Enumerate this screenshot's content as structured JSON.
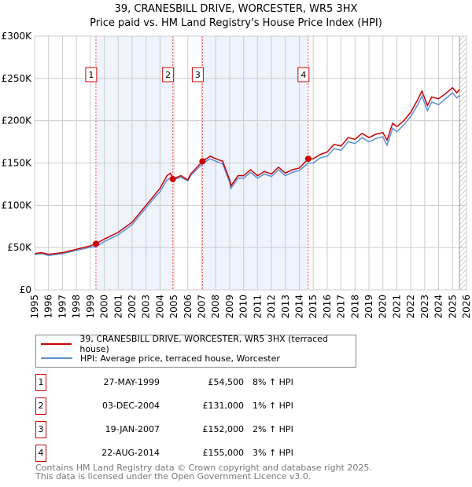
{
  "title": "39, CRANESBILL DRIVE, WORCESTER, WR5 3HX",
  "subtitle": "Price paid vs. HM Land Registry's House Price Index (HPI)",
  "chart_data": {
    "type": "line",
    "xlim": [
      1995,
      2026
    ],
    "ylim": [
      0,
      300000
    ],
    "yticks": [
      {
        "v": 0,
        "l": "£0"
      },
      {
        "v": 50000,
        "l": "£50K"
      },
      {
        "v": 100000,
        "l": "£100K"
      },
      {
        "v": 150000,
        "l": "£150K"
      },
      {
        "v": 200000,
        "l": "£200K"
      },
      {
        "v": 250000,
        "l": "£250K"
      },
      {
        "v": 300000,
        "l": "£300K"
      }
    ],
    "xticks": [
      "1995",
      "1996",
      "1997",
      "1998",
      "1999",
      "2000",
      "2001",
      "2002",
      "2003",
      "2004",
      "2005",
      "2006",
      "2007",
      "2008",
      "2009",
      "2010",
      "2011",
      "2012",
      "2013",
      "2014",
      "2015",
      "2016",
      "2017",
      "2018",
      "2019",
      "2020",
      "2021",
      "2022",
      "2023",
      "2024",
      "2025",
      "2026"
    ],
    "x": [
      1995,
      1995.5,
      1996,
      1997,
      1998,
      1999,
      1999.4,
      2000,
      2001,
      2002,
      2003,
      2003.5,
      2004,
      2004.5,
      2004.75,
      2004.92,
      2005.5,
      2006,
      2006.2,
      2007.05,
      2007.6,
      2008,
      2008.5,
      2009,
      2009.1,
      2009.6,
      2010,
      2010.5,
      2011,
      2011.5,
      2012,
      2012.5,
      2013,
      2013.5,
      2014,
      2014.64,
      2015,
      2015.5,
      2016,
      2016.5,
      2017,
      2017.5,
      2018,
      2018.5,
      2019,
      2019.5,
      2020,
      2020.3,
      2020.7,
      2021,
      2021.5,
      2022,
      2022.5,
      2022.8,
      2023.2,
      2023.5,
      2024,
      2024.5,
      2025,
      2025.3,
      2025.5
    ],
    "series": [
      {
        "name": "39, CRANESBILL DRIVE, WORCESTER, WR5 3HX (terraced house)",
        "color": "#cc0000",
        "values": [
          43,
          44,
          42,
          44,
          48,
          52,
          54.5,
          60,
          68,
          80,
          100,
          110,
          120,
          135,
          138,
          131,
          135,
          130,
          137,
          152,
          158,
          155,
          152,
          130,
          123,
          135,
          135,
          142,
          135,
          140,
          137,
          145,
          138,
          142,
          144,
          155,
          155,
          160,
          163,
          172,
          170,
          180,
          178,
          185,
          180,
          184,
          186,
          177,
          197,
          193,
          200,
          210,
          225,
          235,
          218,
          228,
          226,
          232,
          239,
          233,
          237
        ]
      },
      {
        "name": "HPI: Average price, terraced house, Worcester",
        "color": "#5b8fd6",
        "values": [
          41.7,
          42.7,
          40.7,
          42.7,
          46.6,
          50.4,
          51,
          57,
          65,
          77,
          97,
          107,
          116,
          130,
          132,
          130,
          133,
          129,
          135,
          149,
          155,
          152,
          149,
          127,
          120,
          132,
          132,
          139,
          132,
          137,
          134,
          142,
          135,
          139,
          141,
          150,
          150,
          156,
          158,
          167,
          165,
          175,
          173,
          180,
          175,
          179,
          181,
          171,
          191,
          187,
          195,
          205,
          219,
          229,
          212,
          222,
          219,
          226,
          233,
          227,
          230
        ]
      }
    ],
    "value_unit": "thousands GBP",
    "sales": [
      {
        "n": "1",
        "x": 1999.4,
        "y": 54.5
      },
      {
        "n": "2",
        "x": 2004.92,
        "y": 131
      },
      {
        "n": "3",
        "x": 2007.05,
        "y": 152
      },
      {
        "n": "4",
        "x": 2014.64,
        "y": 155
      }
    ],
    "shaded": [
      [
        1999.4,
        2004.92
      ],
      [
        2007.05,
        2014.64
      ]
    ],
    "forecast_from": 2025.5
  },
  "legend": {
    "red": "39, CRANESBILL DRIVE, WORCESTER, WR5 3HX (terraced house)",
    "blue": "HPI: Average price, terraced house, Worcester"
  },
  "transactions": [
    {
      "n": "1",
      "date": "27-MAY-1999",
      "price": "£54,500",
      "hpi": "8% ↑ HPI"
    },
    {
      "n": "2",
      "date": "03-DEC-2004",
      "price": "£131,000",
      "hpi": "1% ↑ HPI"
    },
    {
      "n": "3",
      "date": "19-JAN-2007",
      "price": "£152,000",
      "hpi": "2% ↑ HPI"
    },
    {
      "n": "4",
      "date": "22-AUG-2014",
      "price": "£155,000",
      "hpi": "3% ↑ HPI"
    }
  ],
  "footer": [
    "Contains HM Land Registry data © Crown copyright and database right 2025.",
    "This data is licensed under the Open Government Licence v3.0."
  ]
}
